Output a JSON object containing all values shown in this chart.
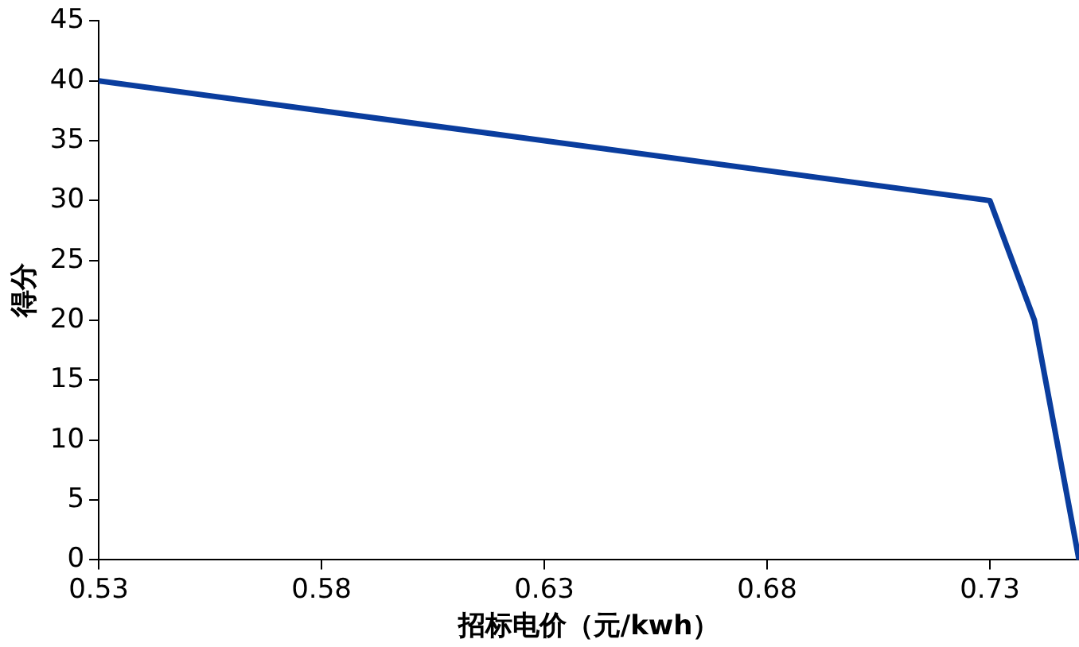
{
  "chart_data": {
    "type": "line",
    "xlabel": "招标电价（元/kwh）",
    "ylabel": "得分",
    "x": [
      0.53,
      0.73,
      0.74,
      0.75
    ],
    "series": [
      {
        "color": "#0a3d9e",
        "values": [
          40,
          30,
          20,
          0
        ]
      }
    ],
    "xlim": [
      0.53,
      0.75
    ],
    "xticks": [
      0.53,
      0.58,
      0.63,
      0.68,
      0.73
    ],
    "ylim": [
      0,
      45
    ],
    "yticks": [
      0,
      5,
      10,
      15,
      20,
      25,
      30,
      35,
      40,
      45
    ],
    "grid": false,
    "legend": false,
    "marker": "none",
    "line_style": "solid"
  }
}
